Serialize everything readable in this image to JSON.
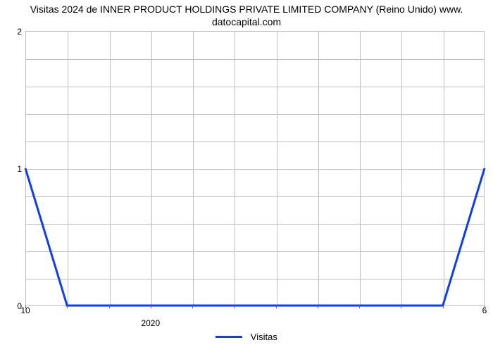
{
  "title_line1": "Visitas 2024 de INNER PRODUCT HOLDINGS PRIVATE LIMITED COMPANY (Reino Unido) www.",
  "title_line2": "datocapital.com",
  "chart": {
    "type": "line",
    "background_color": "#ffffff",
    "grid_color": "#bfbfbf",
    "border_color": "#bfbfbf",
    "ylim": [
      0,
      2
    ],
    "yticks": [
      0,
      1,
      2
    ],
    "yminor_count": 4,
    "x_count": 12,
    "x_left_label": "10",
    "x_right_label": "6",
    "x_major_label": "2020",
    "x_major_index": 3,
    "series": {
      "name": "Visitas",
      "color": "#0b3dff",
      "line_width": 3,
      "values": [
        1,
        0,
        0,
        0,
        0,
        0,
        0,
        0,
        0,
        0,
        0,
        1
      ]
    }
  },
  "legend_label": "Visitas"
}
